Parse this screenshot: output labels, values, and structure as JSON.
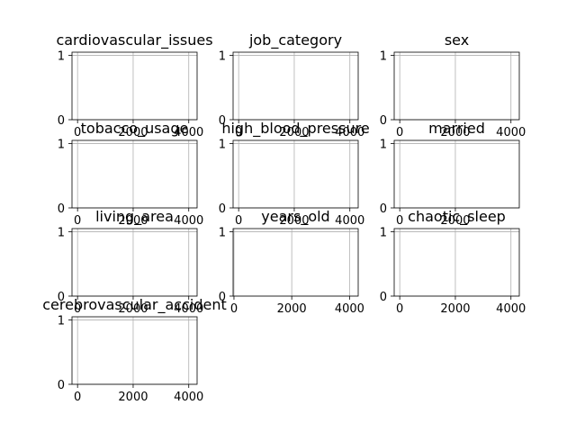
{
  "chart_data": [
    {
      "type": "histogram",
      "title": "cardiovascular_issues",
      "xticks": [
        "0",
        "2000",
        "4000"
      ],
      "yticks": [
        "0",
        "1"
      ],
      "xlim": [
        -200,
        4300
      ],
      "ylim": [
        0,
        1.05
      ],
      "grid": true,
      "series": []
    },
    {
      "type": "histogram",
      "title": "job_category",
      "xticks": [
        "0",
        "2000",
        "4000"
      ],
      "yticks": [
        "0",
        "1"
      ],
      "xlim": [
        -200,
        4300
      ],
      "ylim": [
        0,
        1.05
      ],
      "grid": true,
      "series": []
    },
    {
      "type": "histogram",
      "title": "sex",
      "xticks": [
        "0",
        "2000",
        "4000"
      ],
      "yticks": [
        "0",
        "1"
      ],
      "xlim": [
        -200,
        4300
      ],
      "ylim": [
        0,
        1.05
      ],
      "grid": true,
      "series": []
    },
    {
      "type": "histogram",
      "title": "tobacco_usage",
      "xticks": [
        "0",
        "2000",
        "4000"
      ],
      "yticks": [
        "0",
        "1"
      ],
      "xlim": [
        -200,
        4300
      ],
      "ylim": [
        0,
        1.05
      ],
      "grid": true,
      "series": []
    },
    {
      "type": "histogram",
      "title": "high_blood_pressure",
      "xticks": [
        "0",
        "2000",
        "4000"
      ],
      "yticks": [
        "0",
        "1"
      ],
      "xlim": [
        -200,
        4300
      ],
      "ylim": [
        0,
        1.05
      ],
      "grid": true,
      "series": []
    },
    {
      "type": "histogram",
      "title": "married",
      "xticks": [
        "0",
        "2000"
      ],
      "yticks": [
        "0",
        "1"
      ],
      "xlim": [
        -200,
        4300
      ],
      "ylim": [
        0,
        1.05
      ],
      "grid": true,
      "series": []
    },
    {
      "type": "histogram",
      "title": "living_area",
      "xticks": [
        "0",
        "2000",
        "4000"
      ],
      "yticks": [
        "0",
        "1"
      ],
      "xlim": [
        -200,
        4300
      ],
      "ylim": [
        0,
        1.05
      ],
      "grid": true,
      "series": []
    },
    {
      "type": "histogram",
      "title": "years_old",
      "xticks": [
        "0",
        "2000",
        "4000"
      ],
      "yticks": [
        "0",
        "1"
      ],
      "xlim": [
        -30,
        4300
      ],
      "ylim": [
        0,
        1.05
      ],
      "grid": true,
      "series": []
    },
    {
      "type": "histogram",
      "title": "chaotic_sleep",
      "xticks": [
        "0",
        "2000",
        "4000"
      ],
      "yticks": [
        "0",
        "1"
      ],
      "xlim": [
        -200,
        4300
      ],
      "ylim": [
        0,
        1.05
      ],
      "grid": true,
      "series": []
    },
    {
      "type": "histogram",
      "title": "cerebrovascular_accident",
      "xticks": [
        "0",
        "2000",
        "4000"
      ],
      "yticks": [
        "0",
        "1"
      ],
      "xlim": [
        -200,
        4300
      ],
      "ylim": [
        0,
        1.05
      ],
      "grid": true,
      "series": []
    }
  ]
}
